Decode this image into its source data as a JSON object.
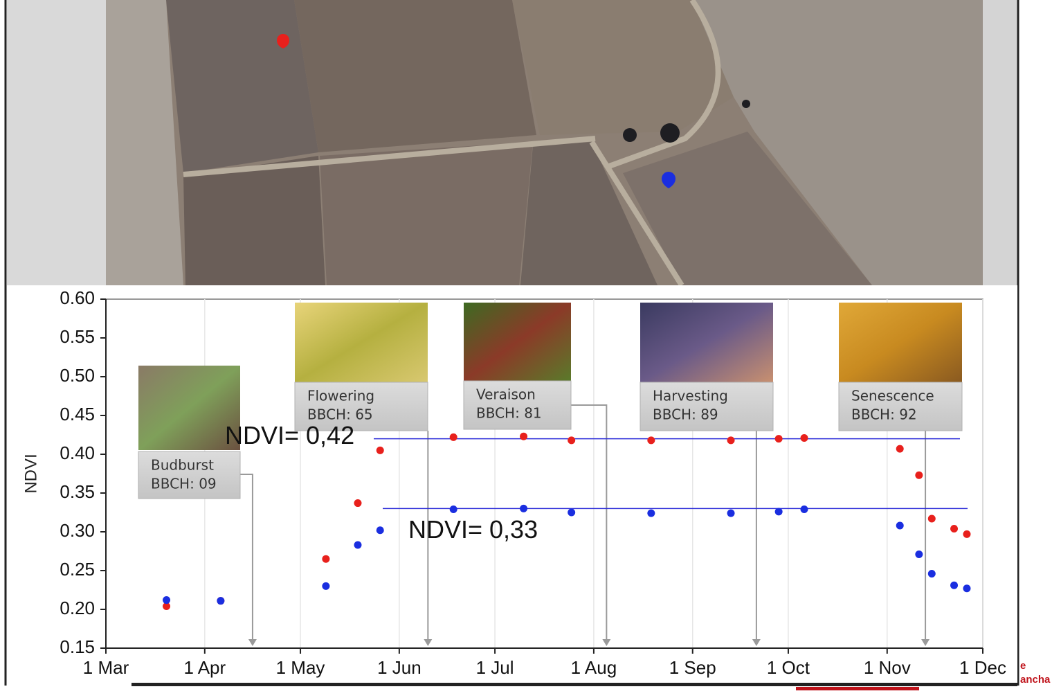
{
  "chart_data": {
    "type": "scatter",
    "ylabel": "NDVI",
    "xlim": [
      0,
      275
    ],
    "ylim": [
      0.15,
      0.6
    ],
    "xticks": [
      {
        "value": 0,
        "label": "1 Mar"
      },
      {
        "value": 31,
        "label": "1 Apr"
      },
      {
        "value": 61,
        "label": "1 May"
      },
      {
        "value": 92,
        "label": "1 Jun"
      },
      {
        "value": 122,
        "label": "1 Jul"
      },
      {
        "value": 153,
        "label": "1 Aug"
      },
      {
        "value": 184,
        "label": "1 Sep"
      },
      {
        "value": 214,
        "label": "1 Oct"
      },
      {
        "value": 245,
        "label": "1 Nov"
      },
      {
        "value": 275,
        "label": "1 Dec"
      }
    ],
    "yticks": [
      0.15,
      {
        "value": 0.2,
        "label": "0.20"
      },
      0.25,
      {
        "value": 0.3,
        "label": "0.30"
      },
      0.35,
      {
        "value": 0.4,
        "label": "0.40"
      },
      0.45,
      {
        "value": 0.5,
        "label": "0.50"
      },
      0.55,
      {
        "value": 0.6,
        "label": "0.60"
      }
    ],
    "grid": true,
    "x": [
      19,
      36,
      69,
      79,
      86,
      109,
      131,
      146,
      171,
      196,
      211,
      219,
      249,
      255,
      259,
      266,
      270
    ],
    "series": [
      {
        "color": "#e8201c",
        "values": [
          0.204,
          0.211,
          0.265,
          0.337,
          0.405,
          0.422,
          0.423,
          0.418,
          0.418,
          0.418,
          0.42,
          0.421,
          0.407,
          0.373,
          0.317,
          0.304,
          0.297
        ]
      },
      {
        "color": "#1a2ee0",
        "values": [
          0.212,
          0.211,
          0.23,
          0.283,
          0.302,
          0.329,
          0.33,
          0.325,
          0.324,
          0.324,
          0.326,
          0.329,
          0.308,
          0.271,
          0.246,
          0.231,
          0.227
        ]
      }
    ],
    "reference_lines": [
      {
        "value": 0.42,
        "label": "NDVI= 0,42",
        "color": "#2b2bd8"
      },
      {
        "value": 0.33,
        "label": "NDVI= 0,33",
        "color": "#2b2bd8"
      }
    ],
    "stages": [
      {
        "name": "Budburst",
        "bbch": "BBCH: 09",
        "x": 46
      },
      {
        "name": "Flowering",
        "bbch": "BBCH: 65",
        "x": 101
      },
      {
        "name": "Veraison",
        "bbch": "BBCH: 81",
        "x": 157
      },
      {
        "name": "Harvesting",
        "bbch": "BBCH: 89",
        "x": 204
      },
      {
        "name": "Senescence",
        "bbch": "BBCH: 92",
        "x": 257
      }
    ]
  },
  "footer_fragments": [
    "e",
    "ancha"
  ]
}
